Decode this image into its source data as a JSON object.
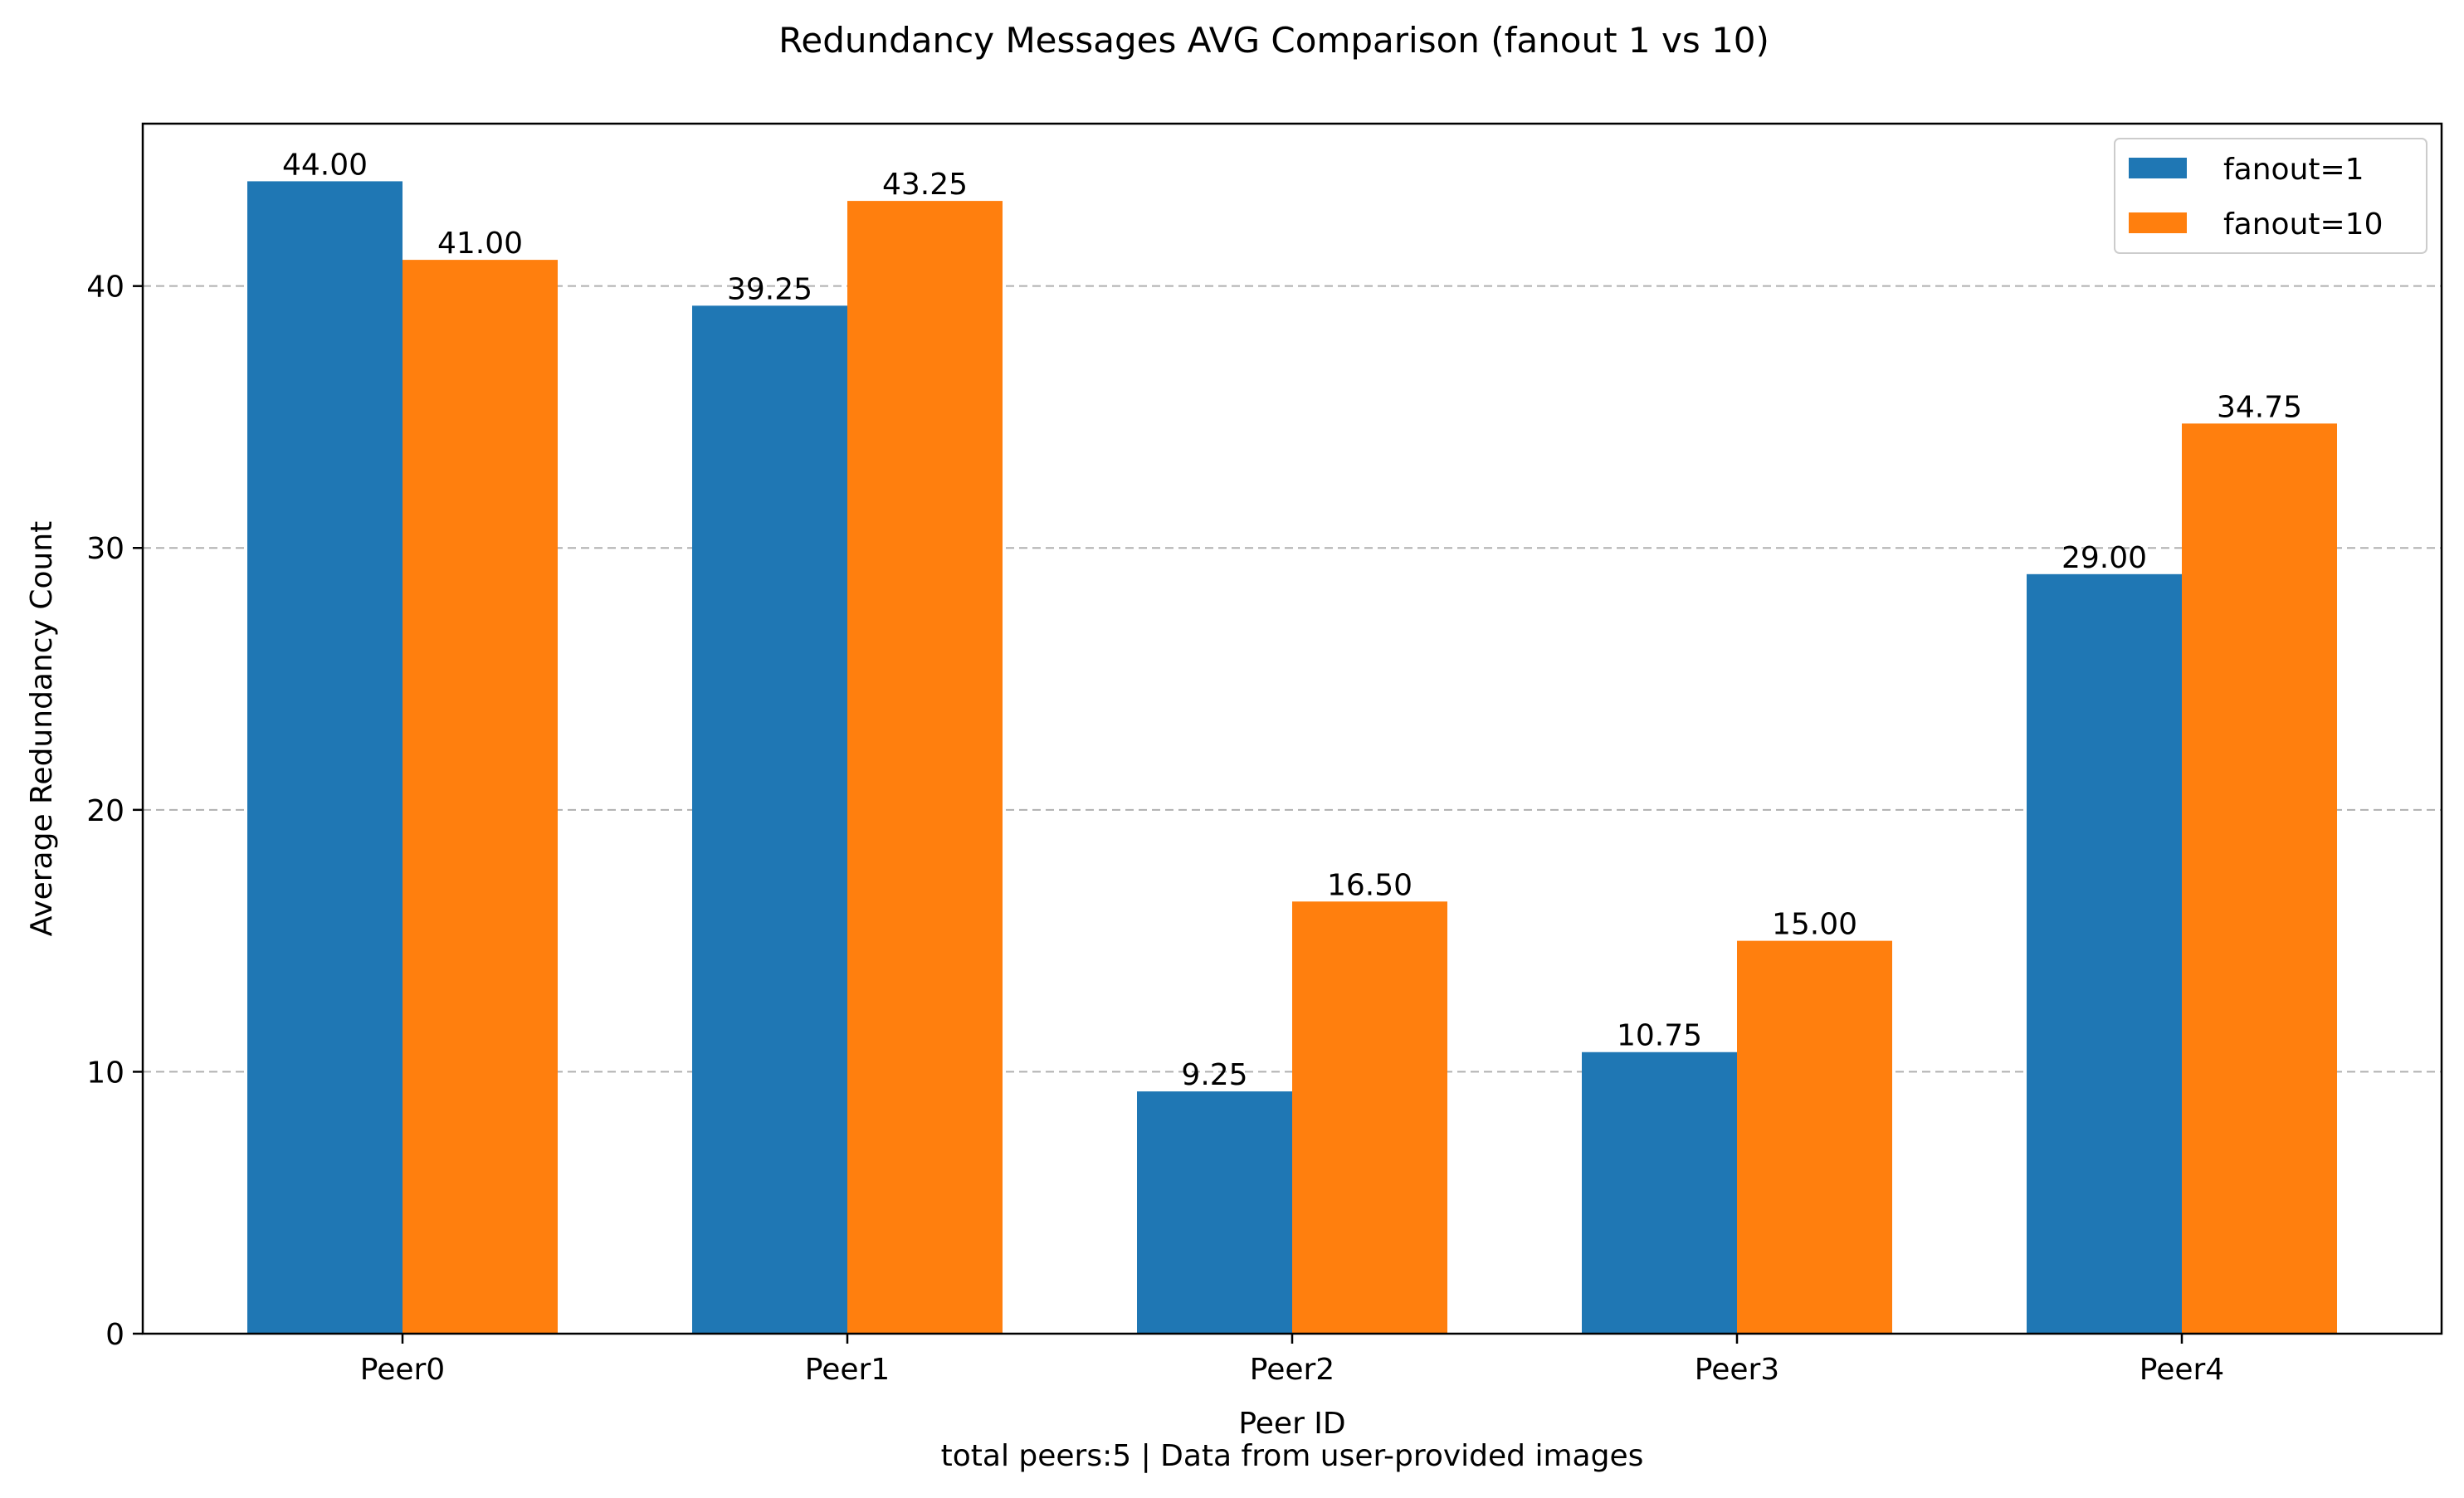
{
  "chart_data": {
    "type": "bar",
    "title": "Redundancy Messages AVG Comparison (fanout 1 vs 10)",
    "xlabel": "Peer ID",
    "ylabel": "Average Redundancy Count",
    "footer": "total peers:5 | Data from user-provided images",
    "categories": [
      "Peer0",
      "Peer1",
      "Peer2",
      "Peer3",
      "Peer4"
    ],
    "series": [
      {
        "name": "fanout=1",
        "color": "#1f77b4",
        "values": [
          44.0,
          39.25,
          9.25,
          10.75,
          29.0
        ],
        "labels": [
          "44.00",
          "39.25",
          "9.25",
          "10.75",
          "29.00"
        ]
      },
      {
        "name": "fanout=10",
        "color": "#ff7f0e",
        "values": [
          41.0,
          43.25,
          16.5,
          15.0,
          34.75
        ],
        "labels": [
          "41.00",
          "43.25",
          "16.50",
          "15.00",
          "34.75"
        ]
      }
    ],
    "ylim": [
      0,
      46.2
    ],
    "yticks": [
      0,
      10,
      20,
      30,
      40
    ],
    "grid": "y-dashed",
    "legend_position": "top-right"
  }
}
